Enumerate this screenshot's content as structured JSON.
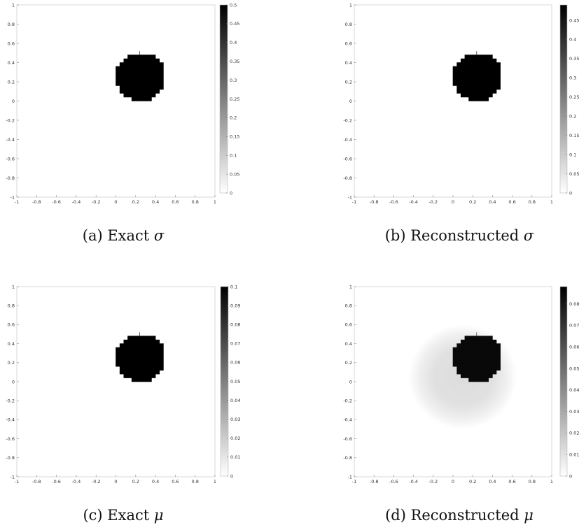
{
  "chart_data": [
    {
      "type": "heatmap",
      "id": "a",
      "caption_label": "(a) Exact",
      "caption_symbol": "σ",
      "xlim": [
        -1,
        1
      ],
      "ylim": [
        -1,
        1
      ],
      "x_ticks": [
        "-1",
        "-0.8",
        "-0.6",
        "-0.4",
        "-0.2",
        "0",
        "0.2",
        "0.4",
        "0.6",
        "0.8",
        "1"
      ],
      "y_ticks": [
        "1",
        "0.8",
        "0.6",
        "0.4",
        "0.2",
        "0",
        "-0.2",
        "-0.4",
        "-0.6",
        "-0.8",
        "-1"
      ],
      "colorbar": {
        "range": [
          0,
          0.5
        ],
        "ticks": [
          "0.5",
          "0.45",
          "0.4",
          "0.35",
          "0.3",
          "0.25",
          "0.2",
          "0.15",
          "0.1",
          "0.05",
          "0"
        ]
      },
      "inclusion": {
        "center": [
          0.25,
          0.25
        ],
        "radius": 0.25,
        "value": 0.5
      },
      "background_value": 0,
      "halo": null
    },
    {
      "type": "heatmap",
      "id": "b",
      "caption_label": "(b) Reconstructed",
      "caption_symbol": "σ",
      "xlim": [
        -1,
        1
      ],
      "ylim": [
        -1,
        1
      ],
      "x_ticks": [
        "-1",
        "-0.8",
        "-0.6",
        "-0.4",
        "-0.2",
        "0",
        "0.2",
        "0.4",
        "0.6",
        "0.8",
        "1"
      ],
      "y_ticks": [
        "1",
        "0.8",
        "0.6",
        "0.4",
        "0.2",
        "0",
        "-0.2",
        "-0.4",
        "-0.6",
        "-0.8",
        "-1"
      ],
      "colorbar": {
        "range": [
          0,
          0.49
        ],
        "ticks": [
          "0.45",
          "0.4",
          "0.35",
          "0.3",
          "0.25",
          "0.2",
          "0.15",
          "0.1",
          "0.05",
          "0"
        ]
      },
      "inclusion": {
        "center": [
          0.25,
          0.25
        ],
        "radius": 0.25,
        "value": 0.49
      },
      "background_value": 0,
      "halo": null
    },
    {
      "type": "heatmap",
      "id": "c",
      "caption_label": "(c) Exact",
      "caption_symbol": "μ",
      "xlim": [
        -1,
        1
      ],
      "ylim": [
        -1,
        1
      ],
      "x_ticks": [
        "-1",
        "-0.8",
        "-0.6",
        "-0.4",
        "-0.2",
        "0",
        "0.2",
        "0.4",
        "0.6",
        "0.8",
        "1"
      ],
      "y_ticks": [
        "1",
        "0.8",
        "0.6",
        "0.4",
        "0.2",
        "0",
        "-0.2",
        "-0.4",
        "-0.6",
        "-0.8",
        "-1"
      ],
      "colorbar": {
        "range": [
          0,
          0.1
        ],
        "ticks": [
          "0.1",
          "0.09",
          "0.08",
          "0.07",
          "0.06",
          "0.05",
          "0.04",
          "0.03",
          "0.02",
          "0.01",
          "0"
        ]
      },
      "inclusion": {
        "center": [
          0.25,
          0.25
        ],
        "radius": 0.25,
        "value": 0.1
      },
      "background_value": 0,
      "halo": null
    },
    {
      "type": "heatmap",
      "id": "d",
      "caption_label": "(d) Reconstructed",
      "caption_symbol": "μ",
      "xlim": [
        -1,
        1
      ],
      "ylim": [
        -1,
        1
      ],
      "x_ticks": [
        "-1",
        "-0.8",
        "-0.6",
        "-0.4",
        "-0.2",
        "0",
        "0.2",
        "0.4",
        "0.6",
        "0.8",
        "1"
      ],
      "y_ticks": [
        "1",
        "0.8",
        "0.6",
        "0.4",
        "0.2",
        "0",
        "-0.2",
        "-0.4",
        "-0.6",
        "-0.8",
        "-1"
      ],
      "colorbar": {
        "range": [
          0,
          0.088
        ],
        "ticks": [
          "0.08",
          "0.07",
          "0.06",
          "0.05",
          "0.04",
          "0.03",
          "0.02",
          "0.01",
          "0"
        ]
      },
      "inclusion": {
        "center": [
          0.25,
          0.25
        ],
        "radius": 0.25,
        "value": 0.085
      },
      "background_value": 0,
      "halo": {
        "center": [
          0.1,
          0.05
        ],
        "radius": 0.55,
        "value": 0.012
      }
    }
  ]
}
